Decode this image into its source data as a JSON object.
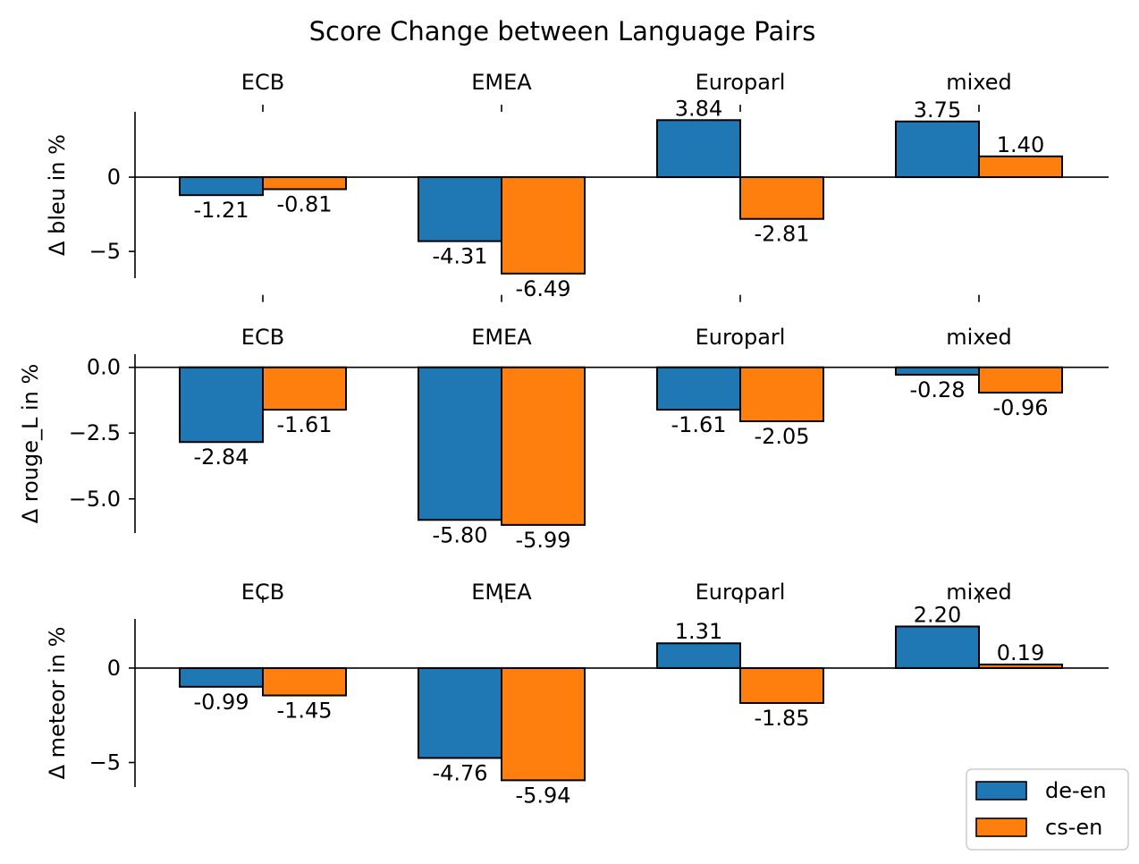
{
  "chart_data": {
    "type": "bar",
    "title": "Score Change between Language Pairs",
    "categories": [
      "ECB",
      "EMEA",
      "Europarl",
      "mixed"
    ],
    "legend": {
      "position": "bottom-right",
      "entries": [
        {
          "name": "de-en",
          "color": "#1f77b4"
        },
        {
          "name": "cs-en",
          "color": "#ff7f0e"
        }
      ]
    },
    "subplots": [
      {
        "ylabel": "Δ bleu in %",
        "ylim": [
          -6.8,
          4.4
        ],
        "yticks": [
          0,
          -5
        ],
        "ytick_labels": [
          "0",
          "−5"
        ],
        "series": [
          {
            "name": "de-en",
            "values": [
              -1.21,
              -4.31,
              3.84,
              3.75
            ],
            "labels": [
              "-1.21",
              "-4.31",
              "3.84",
              "3.75"
            ]
          },
          {
            "name": "cs-en",
            "values": [
              -0.81,
              -6.49,
              -2.81,
              1.4
            ],
            "labels": [
              "-0.81",
              "-6.49",
              "-2.81",
              "1.40"
            ]
          }
        ]
      },
      {
        "ylabel": "Δ rouge_L in %",
        "ylim": [
          -6.3,
          0.5
        ],
        "yticks": [
          0,
          -2.5,
          -5
        ],
        "ytick_labels": [
          "0.0",
          "−2.5",
          "−5.0"
        ],
        "series": [
          {
            "name": "de-en",
            "values": [
              -2.84,
              -5.8,
              -1.61,
              -0.28
            ],
            "labels": [
              "-2.84",
              "-5.80",
              "-1.61",
              "-0.28"
            ]
          },
          {
            "name": "cs-en",
            "values": [
              -1.61,
              -5.99,
              -2.05,
              -0.96
            ],
            "labels": [
              "-1.61",
              "-5.99",
              "-2.05",
              "-0.96"
            ]
          }
        ]
      },
      {
        "ylabel": "Δ meteor in %",
        "ylim": [
          -6.3,
          2.6
        ],
        "yticks": [
          0,
          -5
        ],
        "ytick_labels": [
          "0",
          "−5"
        ],
        "series": [
          {
            "name": "de-en",
            "values": [
              -0.99,
              -4.76,
              1.31,
              2.2
            ],
            "labels": [
              "-0.99",
              "-4.76",
              "1.31",
              "2.20"
            ]
          },
          {
            "name": "cs-en",
            "values": [
              -1.45,
              -5.94,
              -1.85,
              0.19
            ],
            "labels": [
              "-1.45",
              "-5.94",
              "-1.85",
              "0.19"
            ]
          }
        ]
      }
    ]
  }
}
